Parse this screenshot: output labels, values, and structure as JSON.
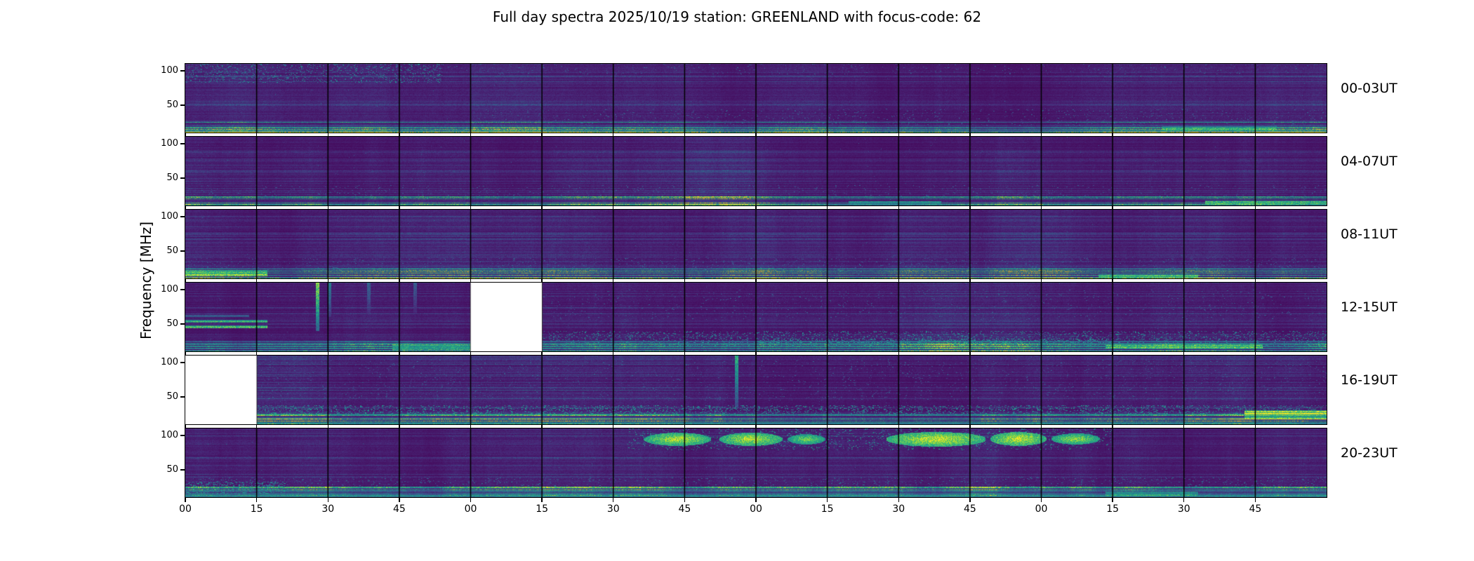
{
  "chart_data": {
    "type": "heatmap",
    "subtype": "radio-spectrogram",
    "title": "Full day spectra 2025/10/19 station: GREENLAND with focus-code: 62",
    "station": "GREENLAND",
    "date": "2025/10/19",
    "focus_code": "62",
    "ylabel": "Frequency [MHz]",
    "colormap": "viridis",
    "freq_range_mhz": [
      10,
      110
    ],
    "y_ticks": [
      100,
      50
    ],
    "hours_per_row": 4,
    "segments_per_row": 16,
    "minutes_per_segment": 15,
    "x_tick_labels": [
      "00",
      "15",
      "30",
      "45",
      "00",
      "15",
      "30",
      "45",
      "00",
      "15",
      "30",
      "45",
      "00",
      "15",
      "30",
      "45"
    ],
    "background_description": "dark viridis noise with horizontal low-frequency RFI striations and black 15-minute file boundaries",
    "rows": [
      {
        "label": "00-03UT",
        "missing_segments": [],
        "features": [
          {
            "type": "speckle",
            "seg": [
              0,
              3.6
            ],
            "freq": [
              82,
              110
            ],
            "intensity": 0.45,
            "density": 0.18
          },
          {
            "type": "speckle",
            "seg": [
              0,
              16
            ],
            "freq": [
              95,
              110
            ],
            "intensity": 0.3,
            "density": 0.04
          },
          {
            "type": "hline",
            "seg": [
              13.7,
              15.3
            ],
            "freq": [
              12,
              19
            ],
            "intensity": 0.6
          },
          {
            "type": "speckle",
            "seg": [
              4,
              16
            ],
            "freq": [
              20,
              45
            ],
            "intensity": 0.3,
            "density": 0.05
          }
        ]
      },
      {
        "label": "04-07UT",
        "missing_segments": [],
        "features": [
          {
            "type": "hline",
            "seg": [
              9.3,
              10.6
            ],
            "freq": [
              11,
              16
            ],
            "intensity": 0.55
          },
          {
            "type": "hline",
            "seg": [
              14.3,
              16
            ],
            "freq": [
              11,
              17
            ],
            "intensity": 0.6
          },
          {
            "type": "speckle",
            "seg": [
              0,
              16
            ],
            "freq": [
              20,
              40
            ],
            "intensity": 0.28,
            "density": 0.05
          }
        ]
      },
      {
        "label": "08-11UT",
        "missing_segments": [],
        "features": [
          {
            "type": "hline",
            "seg": [
              0,
              1.15
            ],
            "freq": [
              13,
              22
            ],
            "intensity": 0.85
          },
          {
            "type": "hline",
            "seg": [
              12.8,
              14.2
            ],
            "freq": [
              11,
              16
            ],
            "intensity": 0.6
          },
          {
            "type": "speckle",
            "seg": [
              0,
              16
            ],
            "freq": [
              20,
              40
            ],
            "intensity": 0.3,
            "density": 0.06
          }
        ]
      },
      {
        "label": "12-15UT",
        "missing_segments": [
          [
            4,
            5
          ]
        ],
        "features": [
          {
            "type": "hline",
            "seg": [
              0,
              1.15
            ],
            "freq": [
              44,
              48
            ],
            "intensity": 0.65
          },
          {
            "type": "hline",
            "seg": [
              0,
              1.15
            ],
            "freq": [
              52,
              56
            ],
            "intensity": 0.7
          },
          {
            "type": "hline",
            "seg": [
              0,
              0.9
            ],
            "freq": [
              60,
              63
            ],
            "intensity": 0.4
          },
          {
            "type": "vline",
            "seg": [
              1.83,
              1.87
            ],
            "freq": [
              40,
              110
            ],
            "intensity": 0.9
          },
          {
            "type": "vline",
            "seg": [
              2.0,
              2.04
            ],
            "freq": [
              60,
              110
            ],
            "intensity": 0.45
          },
          {
            "type": "vline",
            "seg": [
              2.55,
              2.59
            ],
            "freq": [
              65,
              110
            ],
            "intensity": 0.35
          },
          {
            "type": "vline",
            "seg": [
              3.2,
              3.24
            ],
            "freq": [
              65,
              110
            ],
            "intensity": 0.3
          },
          {
            "type": "hline",
            "seg": [
              2.9,
              4.0
            ],
            "freq": [
              12,
              20
            ],
            "intensity": 0.6
          },
          {
            "type": "speckle",
            "seg": [
              5,
              16
            ],
            "freq": [
              18,
              40
            ],
            "intensity": 0.45,
            "density": 0.22
          },
          {
            "type": "speckle",
            "seg": [
              8,
              13
            ],
            "freq": [
              22,
              28
            ],
            "intensity": 0.5,
            "density": 0.4
          },
          {
            "type": "hline",
            "seg": [
              12.9,
              15.1
            ],
            "freq": [
              13,
              20
            ],
            "intensity": 0.65
          },
          {
            "type": "speckle",
            "seg": [
              5,
              16
            ],
            "freq": [
              55,
              100
            ],
            "intensity": 0.3,
            "density": 0.03
          }
        ]
      },
      {
        "label": "16-19UT",
        "missing_segments": [
          [
            0,
            1
          ]
        ],
        "features": [
          {
            "type": "speckle",
            "seg": [
              1,
              16
            ],
            "freq": [
              22,
              38
            ],
            "intensity": 0.5,
            "density": 0.3
          },
          {
            "type": "speckle",
            "seg": [
              1,
              16
            ],
            "freq": [
              45,
              105
            ],
            "intensity": 0.28,
            "density": 0.04
          },
          {
            "type": "vline",
            "seg": [
              7.7,
              7.74
            ],
            "freq": [
              35,
              110
            ],
            "intensity": 0.65
          },
          {
            "type": "hline",
            "seg": [
              14.85,
              16
            ],
            "freq": [
              17,
              30
            ],
            "intensity": 0.9
          },
          {
            "type": "hline",
            "seg": [
              1,
              16
            ],
            "freq": [
              10,
              13
            ],
            "intensity": 0.5
          }
        ]
      },
      {
        "label": "20-23UT",
        "missing_segments": [],
        "features": [
          {
            "type": "blob",
            "seg": [
              6.45,
              7.35
            ],
            "freq": [
              86,
              104
            ],
            "intensity": 0.95
          },
          {
            "type": "blob",
            "seg": [
              7.5,
              8.35
            ],
            "freq": [
              86,
              104
            ],
            "intensity": 0.97
          },
          {
            "type": "blob",
            "seg": [
              8.45,
              8.95
            ],
            "freq": [
              88,
              102
            ],
            "intensity": 0.85
          },
          {
            "type": "blob",
            "seg": [
              9.85,
              11.2
            ],
            "freq": [
              84,
              105
            ],
            "intensity": 1.0
          },
          {
            "type": "blob",
            "seg": [
              11.3,
              12.05
            ],
            "freq": [
              86,
              105
            ],
            "intensity": 1.0
          },
          {
            "type": "blob",
            "seg": [
              12.15,
              12.8
            ],
            "freq": [
              88,
              103
            ],
            "intensity": 0.9
          },
          {
            "type": "speckle",
            "seg": [
              6.2,
              13
            ],
            "freq": [
              78,
              110
            ],
            "intensity": 0.5,
            "density": 0.12
          },
          {
            "type": "speckle",
            "seg": [
              0,
              1.4
            ],
            "freq": [
              14,
              32
            ],
            "intensity": 0.5,
            "density": 0.4
          },
          {
            "type": "hline",
            "seg": [
              12.9,
              14.2
            ],
            "freq": [
              12,
              18
            ],
            "intensity": 0.6
          },
          {
            "type": "hline",
            "seg": [
              0,
              16
            ],
            "freq": [
              10,
              13
            ],
            "intensity": 0.55
          },
          {
            "type": "speckle",
            "seg": [
              0,
              16
            ],
            "freq": [
              20,
              40
            ],
            "intensity": 0.35,
            "density": 0.08
          }
        ]
      }
    ]
  }
}
